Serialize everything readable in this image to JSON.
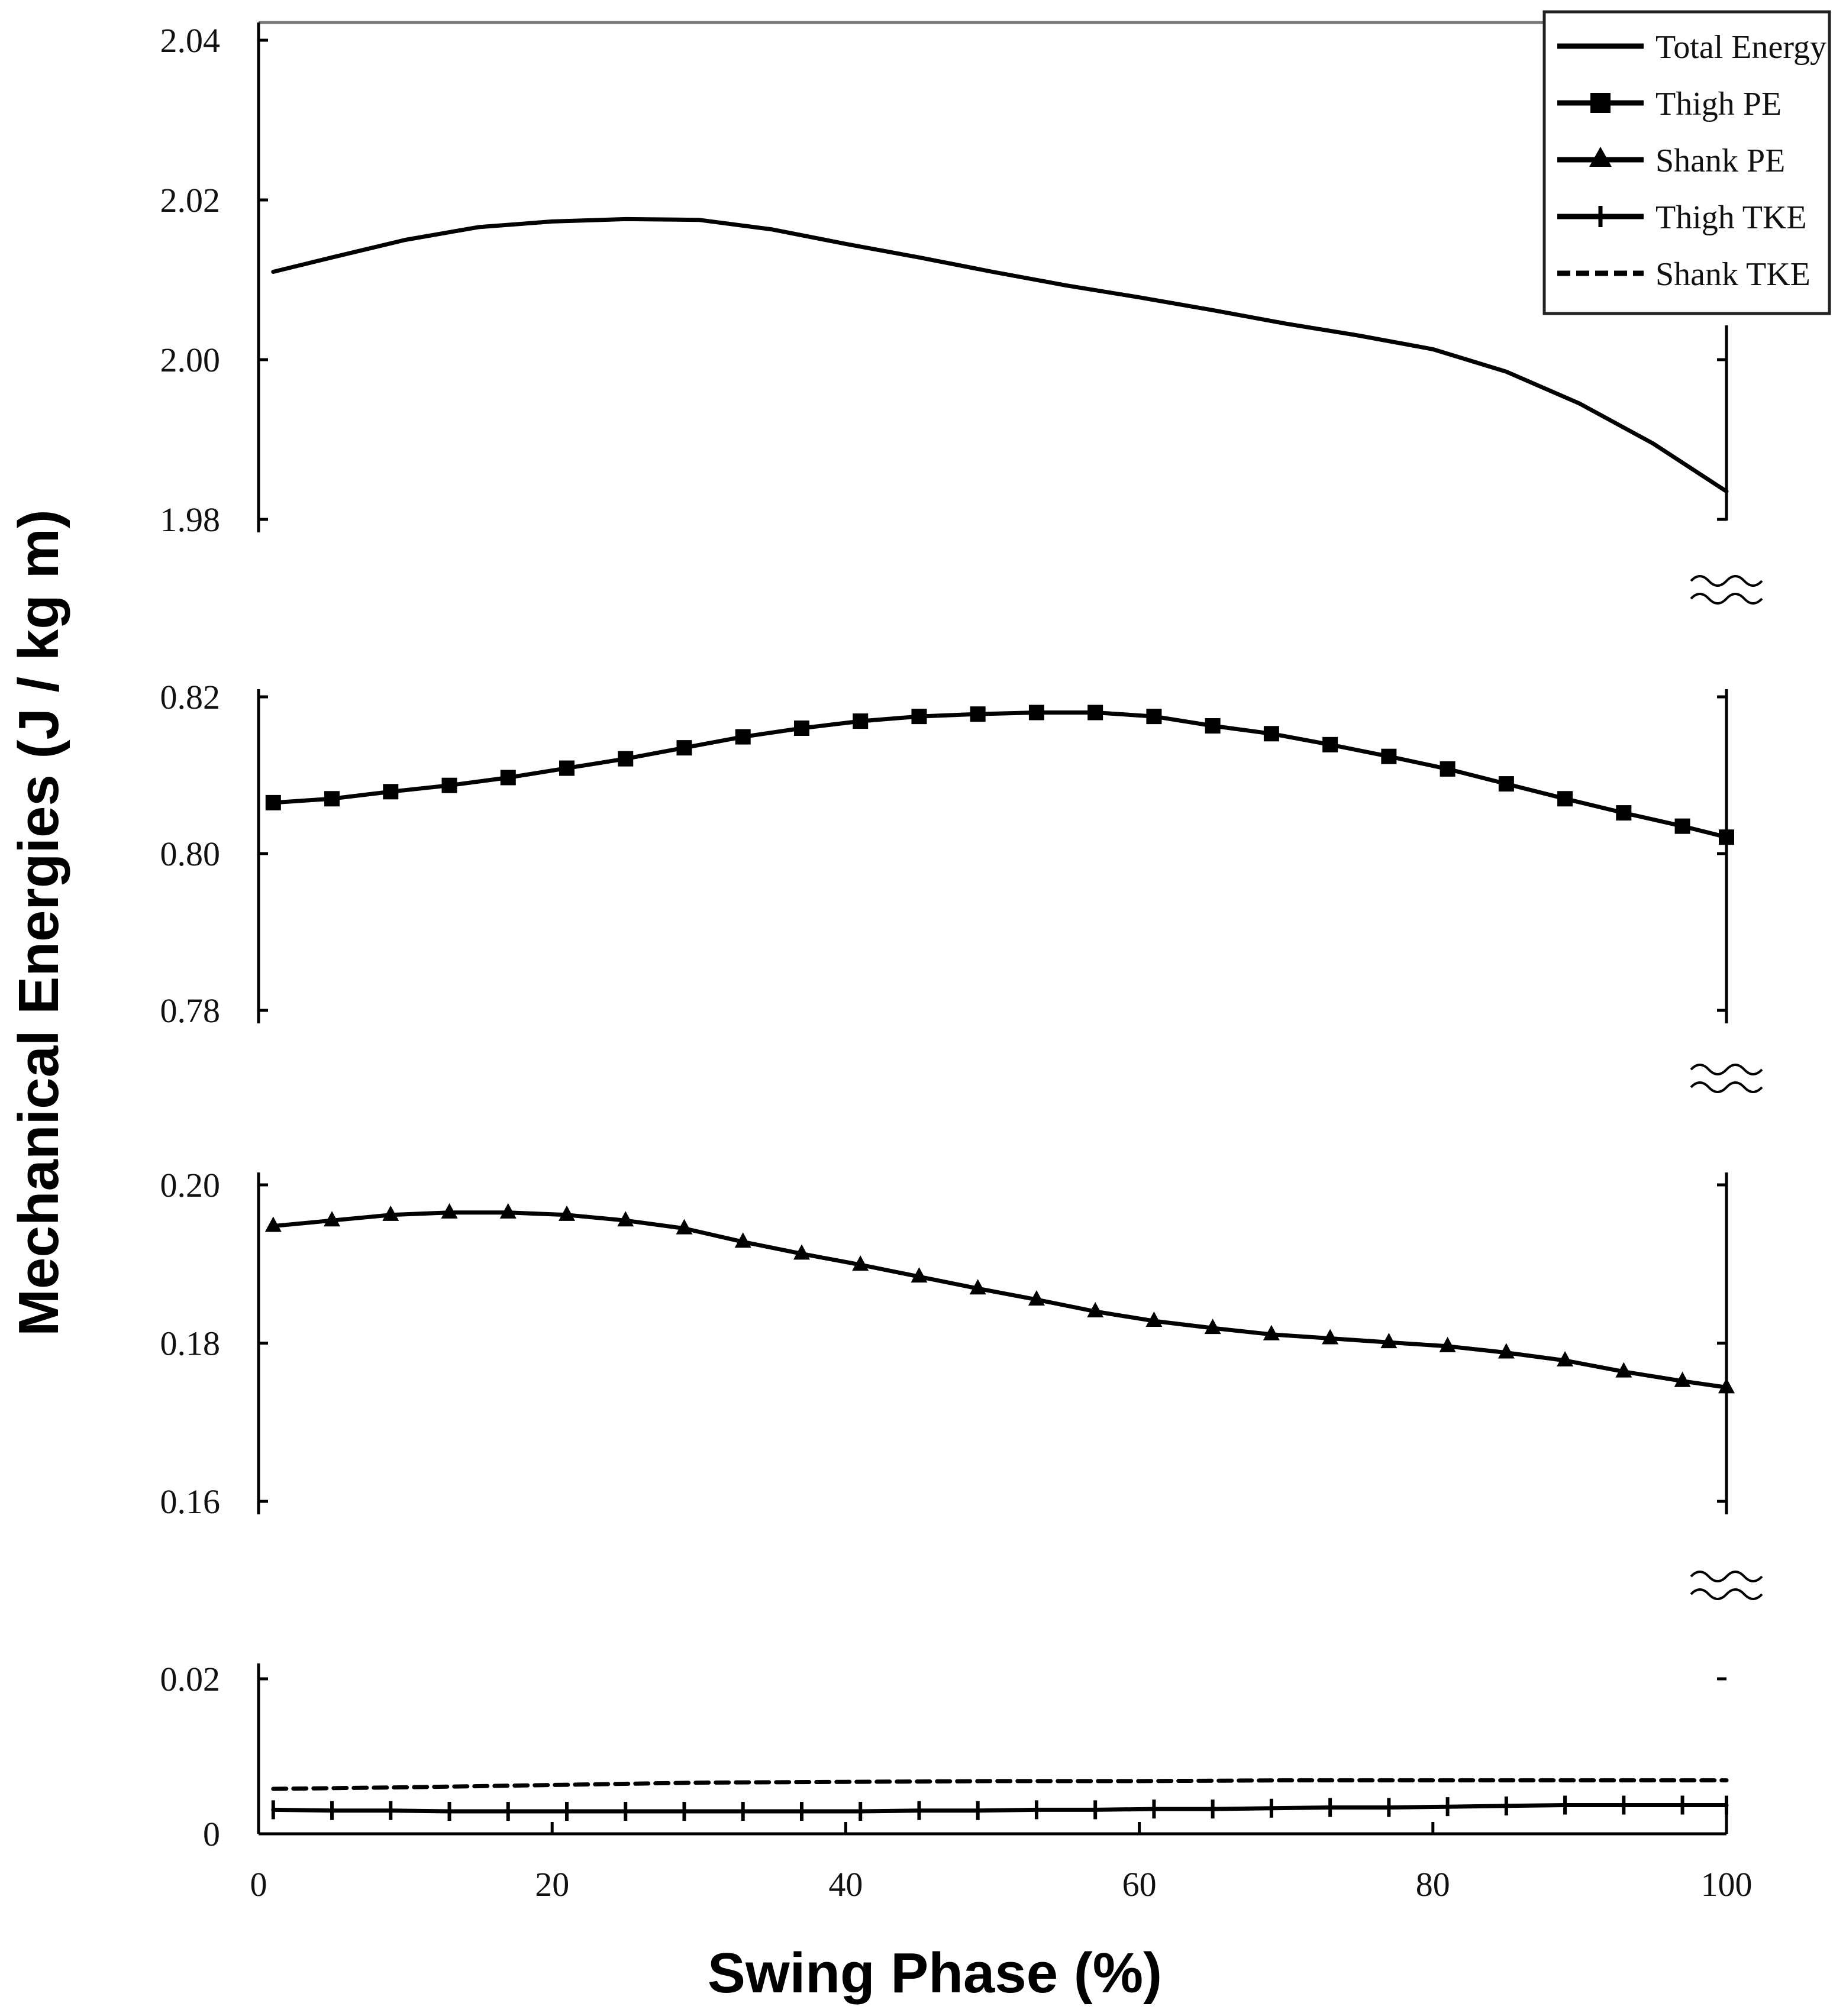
{
  "chart_data": {
    "type": "line",
    "xlabel": "Swing Phase (%)",
    "ylabel": "Mechanical Energies (J / kg m)",
    "xlim": [
      0,
      100
    ],
    "x_ticks": [
      "0",
      "20",
      "40",
      "60",
      "80",
      "100"
    ],
    "legend_position": "top-right",
    "legend": [
      {
        "label": "Total Energy",
        "marker": "none",
        "dash": "solid"
      },
      {
        "label": "Thigh PE",
        "marker": "square",
        "dash": "solid"
      },
      {
        "label": "Shank PE",
        "marker": "triangle",
        "dash": "solid"
      },
      {
        "label": "Thigh TKE",
        "marker": "plus",
        "dash": "solid"
      },
      {
        "label": "Shank TKE",
        "marker": "none",
        "dash": "dashed"
      }
    ],
    "panels": [
      {
        "name": "total-energy",
        "ylim": [
          1.98,
          2.04
        ],
        "y_ticks": [
          "1.98",
          "2.00",
          "2.02",
          "2.04"
        ],
        "series": [
          {
            "name": "Total Energy",
            "x": [
              1,
              5,
              10,
              15,
              20,
              25,
              30,
              35,
              40,
              45,
              50,
              55,
              60,
              65,
              70,
              75,
              80,
              85,
              90,
              95,
              100
            ],
            "values": [
              2.011,
              2.0128,
              2.015,
              2.0166,
              2.0173,
              2.0176,
              2.0175,
              2.0163,
              2.0145,
              2.0128,
              2.011,
              2.0093,
              2.0078,
              2.0062,
              2.0045,
              2.003,
              2.0013,
              1.9985,
              1.9945,
              1.9895,
              1.9835
            ],
            "marker": "none",
            "dash": "solid"
          }
        ]
      },
      {
        "name": "thigh-pe",
        "ylim": [
          0.78,
          0.82
        ],
        "y_ticks": [
          "0.78",
          "0.80",
          "0.82"
        ],
        "series": [
          {
            "name": "Thigh PE",
            "x": [
              1,
              5,
              9,
              13,
              17,
              21,
              25,
              29,
              33,
              37,
              41,
              45,
              49,
              53,
              57,
              61,
              65,
              69,
              73,
              77,
              81,
              85,
              89,
              93,
              97,
              100
            ],
            "values": [
              0.8065,
              0.807,
              0.8079,
              0.8087,
              0.8097,
              0.8109,
              0.8121,
              0.8135,
              0.8149,
              0.816,
              0.8169,
              0.8175,
              0.8178,
              0.818,
              0.818,
              0.8175,
              0.8163,
              0.8153,
              0.8139,
              0.8124,
              0.8108,
              0.8089,
              0.807,
              0.8052,
              0.8035,
              0.8021
            ],
            "marker": "square",
            "dash": "solid"
          }
        ]
      },
      {
        "name": "shank-pe",
        "ylim": [
          0.16,
          0.2
        ],
        "y_ticks": [
          "0.16",
          "0.18",
          "0.20"
        ],
        "series": [
          {
            "name": "Shank PE",
            "x": [
              1,
              5,
              9,
              13,
              17,
              21,
              25,
              29,
              33,
              37,
              41,
              45,
              49,
              53,
              57,
              61,
              65,
              69,
              73,
              77,
              81,
              85,
              89,
              93,
              97,
              100
            ],
            "values": [
              0.1948,
              0.1955,
              0.1962,
              0.1965,
              0.1965,
              0.1962,
              0.1955,
              0.1945,
              0.1928,
              0.1913,
              0.1899,
              0.1884,
              0.1869,
              0.1855,
              0.184,
              0.1828,
              0.1819,
              0.1811,
              0.1806,
              0.1801,
              0.1796,
              0.1788,
              0.1778,
              0.1764,
              0.1752,
              0.1744
            ],
            "marker": "triangle",
            "dash": "solid"
          }
        ]
      },
      {
        "name": "kinetic-energy",
        "ylim": [
          0,
          0.02
        ],
        "y_ticks": [
          "0",
          "0.02"
        ],
        "series": [
          {
            "name": "Thigh TKE",
            "x": [
              1,
              5,
              9,
              13,
              17,
              21,
              25,
              29,
              33,
              37,
              41,
              45,
              49,
              53,
              57,
              61,
              65,
              69,
              73,
              77,
              81,
              85,
              89,
              93,
              97,
              100
            ],
            "values": [
              0.0031,
              0.003,
              0.003,
              0.0029,
              0.0029,
              0.0029,
              0.0029,
              0.0029,
              0.0029,
              0.0029,
              0.0029,
              0.003,
              0.003,
              0.0031,
              0.0031,
              0.0032,
              0.0032,
              0.0033,
              0.0034,
              0.0034,
              0.0035,
              0.0036,
              0.0037,
              0.0037,
              0.0037,
              0.0037
            ],
            "marker": "plus",
            "dash": "solid"
          },
          {
            "name": "Shank TKE",
            "x": [
              1,
              10,
              20,
              30,
              40,
              50,
              60,
              70,
              80,
              90,
              100
            ],
            "values": [
              0.0058,
              0.006,
              0.0063,
              0.0066,
              0.0067,
              0.0068,
              0.0068,
              0.0069,
              0.0069,
              0.0069,
              0.0069
            ],
            "marker": "none",
            "dash": "dashed"
          }
        ]
      }
    ]
  }
}
